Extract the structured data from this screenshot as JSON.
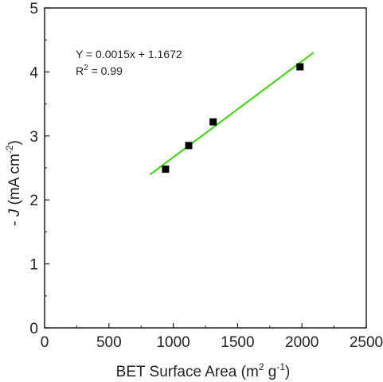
{
  "chart_data": {
    "type": "scatter",
    "xlabel": {
      "main": "BET Surface Area (m",
      "sup1": "2",
      "mid": " g",
      "sup2": "-1",
      "end": ")"
    },
    "ylabel": {
      "italic": "J",
      "prefix": "- ",
      "main": " (mA cm",
      "sup": "-2",
      "end": ")"
    },
    "xlim": [
      0,
      2500
    ],
    "ylim": [
      0,
      5
    ],
    "xticks": [
      0,
      500,
      1000,
      1500,
      2000,
      2500
    ],
    "xtick_labels": [
      "0",
      "500",
      "1000",
      "1500",
      "2000",
      "2500"
    ],
    "yticks": [
      0,
      1,
      2,
      3,
      4,
      5
    ],
    "ytick_labels": [
      "0",
      "1",
      "2",
      "3",
      "4",
      "5"
    ],
    "grid": false,
    "series": [
      {
        "marker": "square",
        "color": "#000000",
        "points": [
          {
            "x": 940,
            "y": 2.48
          },
          {
            "x": 1120,
            "y": 2.85
          },
          {
            "x": 1310,
            "y": 3.22
          },
          {
            "x": 1985,
            "y": 4.08
          }
        ]
      }
    ],
    "fit_line": {
      "color": "#33dd00",
      "slope": 0.0015,
      "intercept": 1.1672,
      "x_range": [
        820,
        2090
      ]
    },
    "annotations": {
      "equation": "Y = 0.0015x + 1.1672",
      "r2_prefix": "R",
      "r2_sup": "2",
      "r2_value": " = 0.99"
    }
  }
}
